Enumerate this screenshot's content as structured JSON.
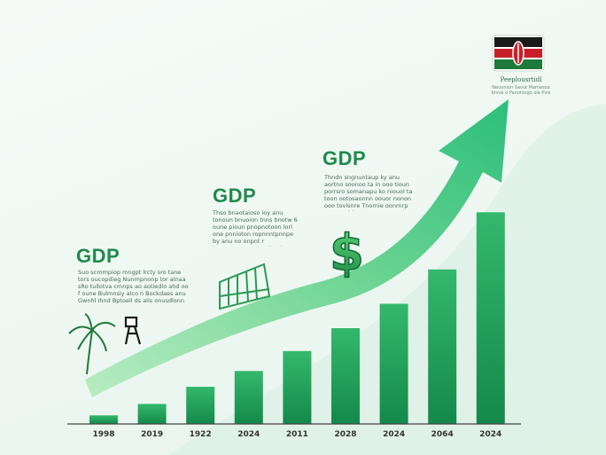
{
  "chart_data": {
    "type": "bar",
    "categories": [
      "1998",
      "2019",
      "1922",
      "2024",
      "2011",
      "2028",
      "2024",
      "2064",
      "2024"
    ],
    "values": [
      6,
      14,
      26,
      37,
      51,
      67,
      84,
      108,
      148
    ],
    "ylim": [
      0,
      160
    ],
    "grid": false,
    "legend": "none",
    "trend_arrow": "upward",
    "colors": {
      "bar_top": "#34b86c",
      "bar_bottom": "#14894a",
      "arrow_light": "#a8e6b4",
      "arrow_dark": "#2ec27e",
      "axis": "#444444"
    }
  },
  "annotations": [
    {
      "title": "GDP",
      "text": "Suo scmmpiop mngpt lrcty sro tane tors oucopdieg Nunmpnonp tor alnaa sRo tullotva cmnps ao aotiedlo ahd oo f oune Bulmnsiy alco n Bockdaes anu Gwnhl Ihnd Bptoell ds alis onusdlonn"
    },
    {
      "title": "GDP",
      "text": "Thso bnaotaioso ioy anu tonoun bnuoion tnns bnotw 6 oune pioun pnopnotoon lorl one pnnioton ropnnntpnnpe by anu no onpnt r toonpnoounno tonntno tonu onnuinny"
    },
    {
      "title": "GDP",
      "text": "Thndn sngnuntaup ky anu aortno soonoo ta in ooo tioun porrsro somanapu ko niouol ta toon ootosaonnn oouor nonon ooo tovlsnre Tnornie oonrnrp anu onniyiooun aoooonnontr"
    }
  ],
  "flag": {
    "caption": "Peeplousrtidl",
    "subcaption": "Neuonion Savut Mamesoo bnnai o Panoniogo ola Pios",
    "colors": {
      "black": "#1a1a1a",
      "red": "#c8202a",
      "green": "#1e7a3a",
      "white": "#ffffff"
    }
  },
  "icons": {
    "palm": "palm-tree-icon",
    "giraffe": "giraffe-icon",
    "bridge": "bridge-icon",
    "dollar": "dollar-sign-icon"
  }
}
